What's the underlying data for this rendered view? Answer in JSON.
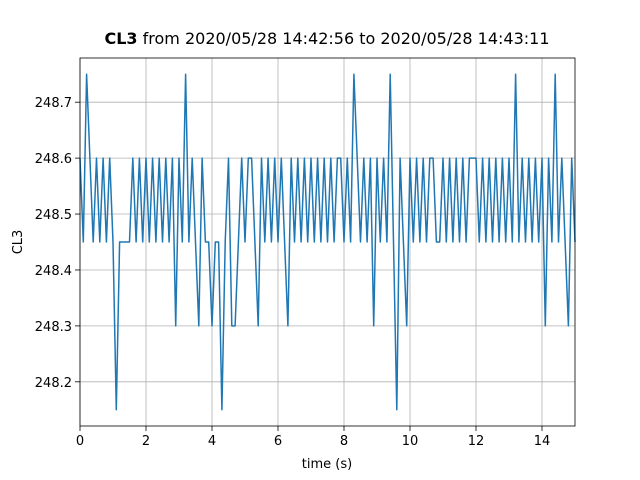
{
  "chart_data": {
    "type": "line",
    "title": {
      "bold": "CL3",
      "text": "from 2020/05/28 14:42:56 to 2020/05/28 14:43:11"
    },
    "xlabel": "time (s)",
    "ylabel": "CL3",
    "color": "#1f77b4",
    "grid": true,
    "xlim": [
      0,
      15
    ],
    "ylim": [
      248.121,
      248.779
    ],
    "xticks": [
      0,
      2,
      4,
      6,
      8,
      10,
      12,
      14
    ],
    "yticks": [
      248.2,
      248.3,
      248.4,
      248.5,
      248.6,
      248.7
    ],
    "x": [
      0,
      0.1,
      0.2,
      0.3,
      0.4,
      0.5,
      0.6,
      0.7,
      0.8,
      0.9,
      1,
      1.1,
      1.2,
      1.3,
      1.4,
      1.5,
      1.6,
      1.7,
      1.8,
      1.9,
      2,
      2.1,
      2.2,
      2.3,
      2.4,
      2.5,
      2.6,
      2.7,
      2.8,
      2.9,
      3,
      3.1,
      3.2,
      3.3,
      3.4,
      3.5,
      3.6,
      3.7,
      3.8,
      3.9,
      4,
      4.1,
      4.2,
      4.3,
      4.4,
      4.5,
      4.6,
      4.7,
      4.8,
      4.9,
      5,
      5.1,
      5.2,
      5.3,
      5.4,
      5.5,
      5.6,
      5.7,
      5.8,
      5.9,
      6,
      6.1,
      6.2,
      6.3,
      6.4,
      6.5,
      6.6,
      6.7,
      6.8,
      6.9,
      7,
      7.1,
      7.2,
      7.3,
      7.4,
      7.5,
      7.6,
      7.7,
      7.8,
      7.9,
      8,
      8.1,
      8.2,
      8.3,
      8.4,
      8.5,
      8.6,
      8.7,
      8.8,
      8.9,
      9,
      9.1,
      9.2,
      9.3,
      9.4,
      9.5,
      9.6,
      9.7,
      9.8,
      9.9,
      10,
      10.1,
      10.2,
      10.3,
      10.4,
      10.5,
      10.6,
      10.7,
      10.8,
      10.9,
      11,
      11.1,
      11.2,
      11.3,
      11.4,
      11.5,
      11.6,
      11.7,
      11.8,
      11.9,
      12,
      12.1,
      12.2,
      12.3,
      12.4,
      12.5,
      12.6,
      12.7,
      12.8,
      12.9,
      13,
      13.1,
      13.2,
      13.3,
      13.4,
      13.5,
      13.6,
      13.7,
      13.8,
      13.9,
      14,
      14.1,
      14.2,
      14.3,
      14.4,
      14.5,
      14.6,
      14.7,
      14.8,
      14.9,
      15
    ],
    "values": [
      248.6,
      248.45,
      248.75,
      248.6,
      248.45,
      248.6,
      248.45,
      248.6,
      248.45,
      248.6,
      248.45,
      248.15,
      248.45,
      248.45,
      248.45,
      248.45,
      248.6,
      248.45,
      248.6,
      248.45,
      248.6,
      248.45,
      248.6,
      248.45,
      248.6,
      248.45,
      248.6,
      248.45,
      248.6,
      248.3,
      248.6,
      248.45,
      248.75,
      248.45,
      248.6,
      248.45,
      248.3,
      248.6,
      248.45,
      248.45,
      248.3,
      248.45,
      248.45,
      248.15,
      248.45,
      248.6,
      248.3,
      248.3,
      248.45,
      248.6,
      248.45,
      248.6,
      248.6,
      248.45,
      248.3,
      248.6,
      248.45,
      248.6,
      248.45,
      248.6,
      248.45,
      248.6,
      248.45,
      248.3,
      248.6,
      248.45,
      248.6,
      248.45,
      248.6,
      248.45,
      248.6,
      248.45,
      248.6,
      248.45,
      248.6,
      248.45,
      248.6,
      248.45,
      248.6,
      248.6,
      248.45,
      248.6,
      248.45,
      248.75,
      248.6,
      248.45,
      248.6,
      248.45,
      248.6,
      248.3,
      248.6,
      248.45,
      248.6,
      248.45,
      248.75,
      248.45,
      248.15,
      248.6,
      248.45,
      248.3,
      248.6,
      248.45,
      248.6,
      248.45,
      248.6,
      248.45,
      248.6,
      248.6,
      248.45,
      248.45,
      248.6,
      248.45,
      248.6,
      248.45,
      248.6,
      248.45,
      248.6,
      248.45,
      248.6,
      248.6,
      248.6,
      248.45,
      248.6,
      248.45,
      248.6,
      248.45,
      248.6,
      248.45,
      248.6,
      248.45,
      248.6,
      248.45,
      248.75,
      248.45,
      248.6,
      248.45,
      248.6,
      248.45,
      248.6,
      248.45,
      248.6,
      248.3,
      248.6,
      248.45,
      248.75,
      248.45,
      248.6,
      248.45,
      248.3,
      248.6,
      248.45
    ]
  }
}
